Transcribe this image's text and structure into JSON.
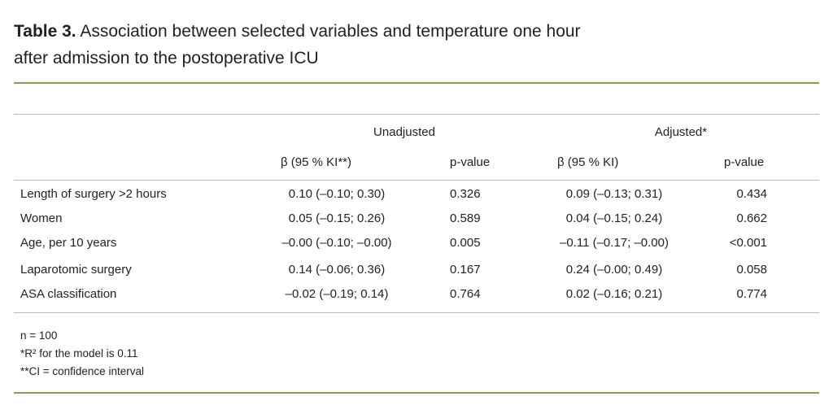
{
  "title": {
    "label": "Table 3.",
    "lines": [
      "Association between selected variables and temperature one hour",
      "after admission to the postoperative ICU"
    ]
  },
  "table": {
    "group_headers": [
      "Unadjusted",
      "Adjusted*"
    ],
    "column_headers": [
      "β (95 % KI**)",
      "p-value",
      "β (95 % KI)",
      "p-value"
    ],
    "rows": [
      [
        "Length of surgery >2 hours",
        "0.10 (–0.10; 0.30)",
        "0.326",
        "0.09 (–0.13; 0.31)",
        "0.434"
      ],
      [
        "Women",
        "0.05 (–0.15; 0.26)",
        "0.589",
        "0.04 (–0.15; 0.24)",
        "0.662"
      ],
      [
        "Age, per 10 years",
        "–0.00 (–0.10; –0.00)",
        "0.005",
        "–0.11 (–0.17; –0.00)",
        "<0.001"
      ],
      [
        "Laparotomic surgery",
        "0.14 (–0.06; 0.36)",
        "0.167",
        "0.24 (–0.00; 0.49)",
        "0.058"
      ],
      [
        "ASA classification",
        "–0.02 (–0.19; 0.14)",
        "0.764",
        "0.02 (–0.16; 0.21)",
        "0.774"
      ]
    ]
  },
  "footnotes": [
    "n = 100",
    "*R² for the model is 0.11",
    "**CI = confidence interval"
  ]
}
